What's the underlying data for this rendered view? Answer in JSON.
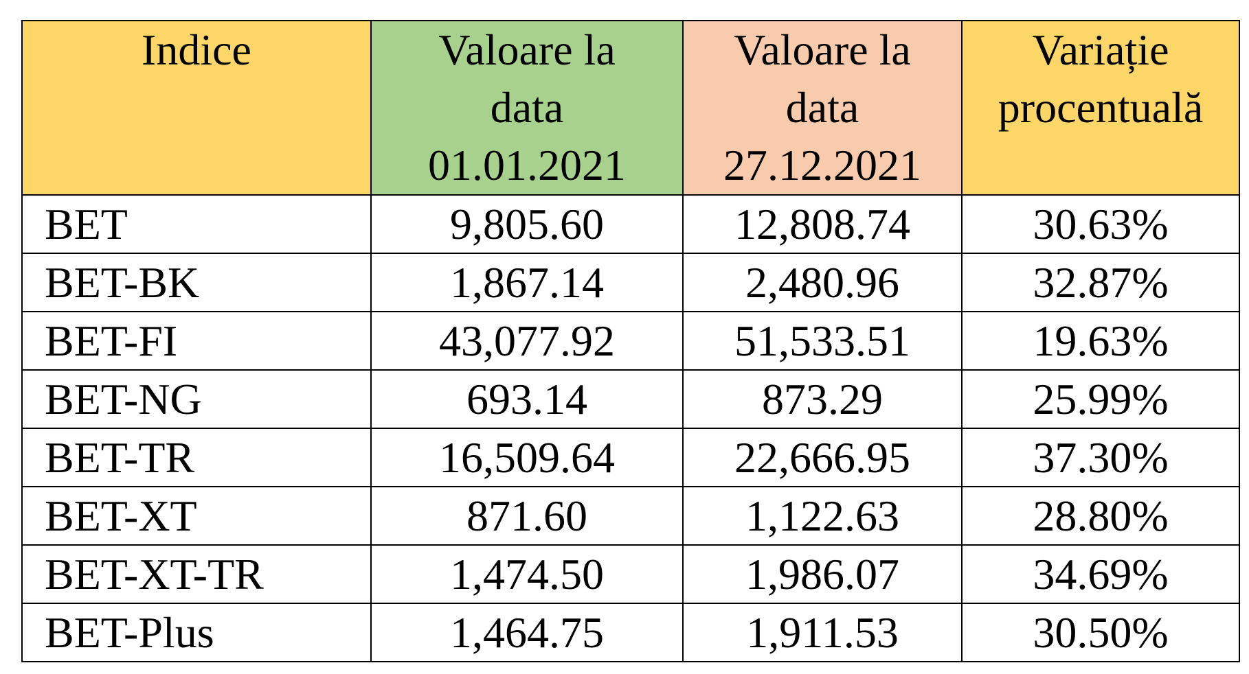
{
  "table": {
    "headers": {
      "index": [
        "Indice"
      ],
      "start": [
        "Valoare la",
        "data",
        "01.01.2021"
      ],
      "end": [
        "Valoare la",
        "data",
        "27.12.2021"
      ],
      "change": [
        "Variație",
        "procentuală"
      ]
    },
    "colors": {
      "index_header": "#fdd668",
      "start_header": "#a9d18e",
      "end_header": "#f8cbad",
      "change_header": "#fdd668"
    },
    "rows": [
      {
        "index": "BET",
        "start": "9,805.60",
        "end": "12,808.74",
        "change": "30.63%"
      },
      {
        "index": "BET-BK",
        "start": "1,867.14",
        "end": "2,480.96",
        "change": "32.87%"
      },
      {
        "index": "BET-FI",
        "start": "43,077.92",
        "end": "51,533.51",
        "change": "19.63%"
      },
      {
        "index": "BET-NG",
        "start": "693.14",
        "end": "873.29",
        "change": "25.99%"
      },
      {
        "index": "BET-TR",
        "start": "16,509.64",
        "end": "22,666.95",
        "change": "37.30%"
      },
      {
        "index": "BET-XT",
        "start": "871.60",
        "end": "1,122.63",
        "change": "28.80%"
      },
      {
        "index": "BET-XT-TR",
        "start": "1,474.50",
        "end": "1,986.07",
        "change": "34.69%"
      },
      {
        "index": "BET-Plus",
        "start": "1,464.75",
        "end": "1,911.53",
        "change": "30.50%"
      }
    ]
  }
}
